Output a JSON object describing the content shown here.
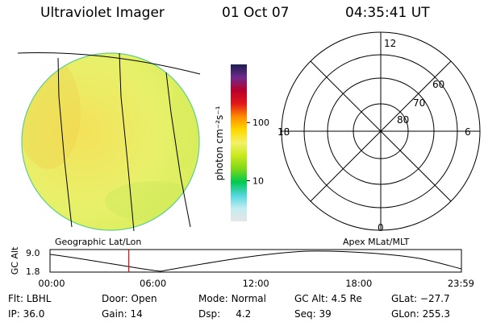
{
  "header": {
    "title": "Ultraviolet Imager",
    "date": "01 Oct 07",
    "time": "04:35:41 UT"
  },
  "colorbar": {
    "unit": "photon cm⁻²s⁻¹",
    "ticks": [
      {
        "label": "100",
        "value": 100
      },
      {
        "label": "10",
        "value": 10
      }
    ],
    "colors": [
      "#e6e6e6",
      "#c2ecf2",
      "#52d6dc",
      "#00c850",
      "#7dd818",
      "#c8e81e",
      "#f2f266",
      "#ffd800",
      "#ff8c00",
      "#e01818",
      "#b8002a",
      "#6e2a8c",
      "#1e1a50"
    ]
  },
  "image": {
    "background_color": "#e6f56e",
    "caption": "Geographic Lat/Lon"
  },
  "polar": {
    "labels": {
      "top": "12",
      "right": "6",
      "bottom": "0",
      "left": "18"
    },
    "ring_labels": [
      "60",
      "70",
      "80"
    ],
    "caption": "Apex MLat/MLT"
  },
  "altitude": {
    "ylabel": "GC Alt",
    "yticks": [
      "9.0",
      "1.8"
    ],
    "xticks": [
      "00:00",
      "06:00",
      "12:00",
      "18:00",
      "23:59"
    ],
    "marker_time": "04:35:41",
    "marker_color": "#e00000"
  },
  "info": {
    "flt_label": "Flt:",
    "flt_value": "LBHL",
    "ip_label": "IP:",
    "ip_value": "36.0",
    "door_label": "Door:",
    "door_value": "Open",
    "gain_label": "Gain:",
    "gain_value": "14",
    "mode_label": "Mode:",
    "mode_value": "Normal",
    "dsp_label": "Dsp:",
    "dsp_value": "4.2",
    "gcalt_label": "GC Alt:",
    "gcalt_value": "4.5 Re",
    "seq_label": "Seq:",
    "seq_value": "39",
    "glat_label": "GLat:",
    "glat_value": "−27.7",
    "glon_label": "GLon:",
    "glon_value": "255.3"
  }
}
